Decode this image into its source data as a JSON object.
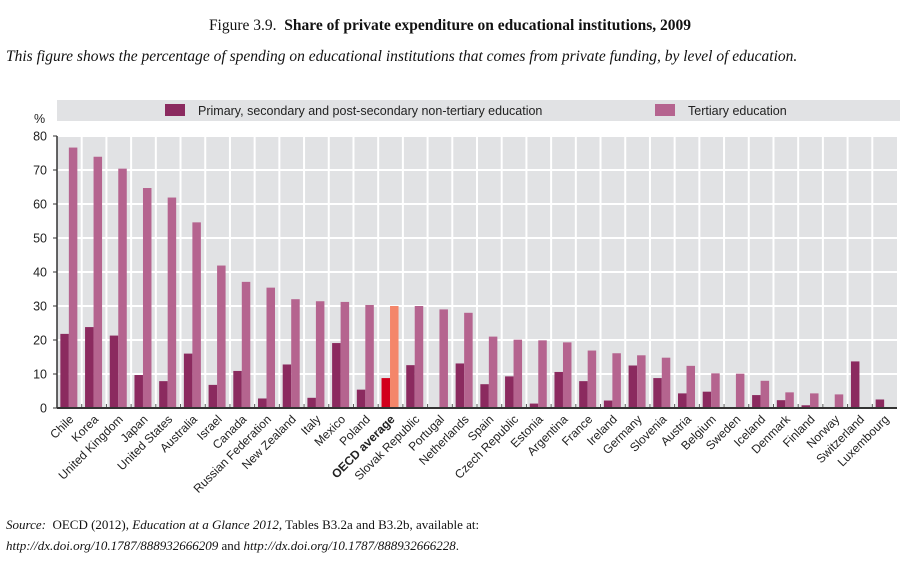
{
  "figure": {
    "number": "Figure 3.9.",
    "title": "Share of private expenditure on educational institutions, 2009",
    "description": "This figure shows the percentage of spending on educational institutions that comes from private funding, by level of education."
  },
  "source": {
    "label": "Source:",
    "pre": "OECD (2012),",
    "publication": "Education at a Glance 2012",
    "post": ", Tables B3.2a and B3.2b, available at:",
    "link1": "http://dx.doi.org/10.1787/888932666209",
    "and": " and ",
    "link2": "http://dx.doi.org/10.1787/888932666228",
    "end": "."
  },
  "colors": {
    "primary": "#8b2a5f",
    "tertiary": "#b5648f",
    "oecd_primary": "#d2001c",
    "oecd_tertiary": "#f4866a",
    "plot_bg": "#e1e2e4",
    "grid": "#ffffff"
  },
  "chart_data": {
    "type": "bar",
    "title": "Share of private expenditure on educational institutions, 2009",
    "xlabel": "",
    "ylabel": "%",
    "ylim": [
      0,
      80
    ],
    "yticks": [
      0,
      10,
      20,
      30,
      40,
      50,
      60,
      70,
      80
    ],
    "grid": true,
    "legend_position": "top",
    "highlight_category": "OECD average",
    "categories": [
      "Chile",
      "Korea",
      "United Kingdom",
      "Japan",
      "United States",
      "Australia",
      "Israel",
      "Canada",
      "Russian Federation",
      "New Zealand",
      "Italy",
      "Mexico",
      "Poland",
      "OECD average",
      "Slovak Republic",
      "Portugal",
      "Netherlands",
      "Spain",
      "Czech Republic",
      "Estonia",
      "Argentina",
      "France",
      "Ireland",
      "Germany",
      "Slovenia",
      "Austria",
      "Belgium",
      "Sweden",
      "Iceland",
      "Denmark",
      "Finland",
      "Norway",
      "Switzerland",
      "Luxembourg"
    ],
    "series": [
      {
        "name": "Primary, secondary and post-secondary non-tertiary education",
        "values": [
          21.8,
          23.8,
          21.3,
          9.7,
          7.9,
          16.0,
          6.8,
          10.9,
          2.8,
          12.8,
          3.0,
          19.1,
          5.4,
          8.8,
          12.6,
          null,
          13.1,
          7.0,
          9.3,
          1.3,
          10.6,
          7.9,
          2.2,
          12.5,
          8.8,
          4.3,
          4.8,
          null,
          3.8,
          2.3,
          0.8,
          null,
          13.7,
          2.5
        ]
      },
      {
        "name": "Tertiary education",
        "values": [
          76.6,
          73.9,
          70.4,
          64.7,
          61.9,
          54.6,
          41.9,
          37.1,
          35.4,
          32.0,
          31.4,
          31.2,
          30.3,
          30.0,
          30.0,
          29.0,
          28.0,
          21.0,
          20.1,
          19.9,
          19.3,
          16.9,
          16.1,
          15.5,
          14.8,
          12.4,
          10.2,
          10.1,
          8.0,
          4.6,
          4.3,
          4.0,
          null,
          null
        ]
      }
    ]
  }
}
